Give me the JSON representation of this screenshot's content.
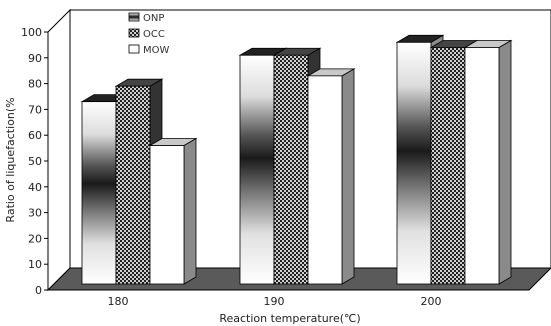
{
  "chart_data": {
    "type": "bar",
    "categories": [
      "180",
      "190",
      "200"
    ],
    "series": [
      {
        "name": "ONP",
        "values": [
          73,
          91,
          96
        ]
      },
      {
        "name": "OCC",
        "values": [
          79,
          91,
          94
        ]
      },
      {
        "name": "MOW",
        "values": [
          56,
          83,
          94
        ]
      }
    ],
    "xlabel": "Reaction temperature(℃)",
    "ylabel": "Ratio of liquefaction(%",
    "ylim": [
      0,
      100
    ],
    "yticks": [
      "0",
      "10",
      "20",
      "30",
      "40",
      "50",
      "60",
      "70",
      "80",
      "90",
      "100"
    ],
    "legend_position": "top-left",
    "grid": false
  }
}
